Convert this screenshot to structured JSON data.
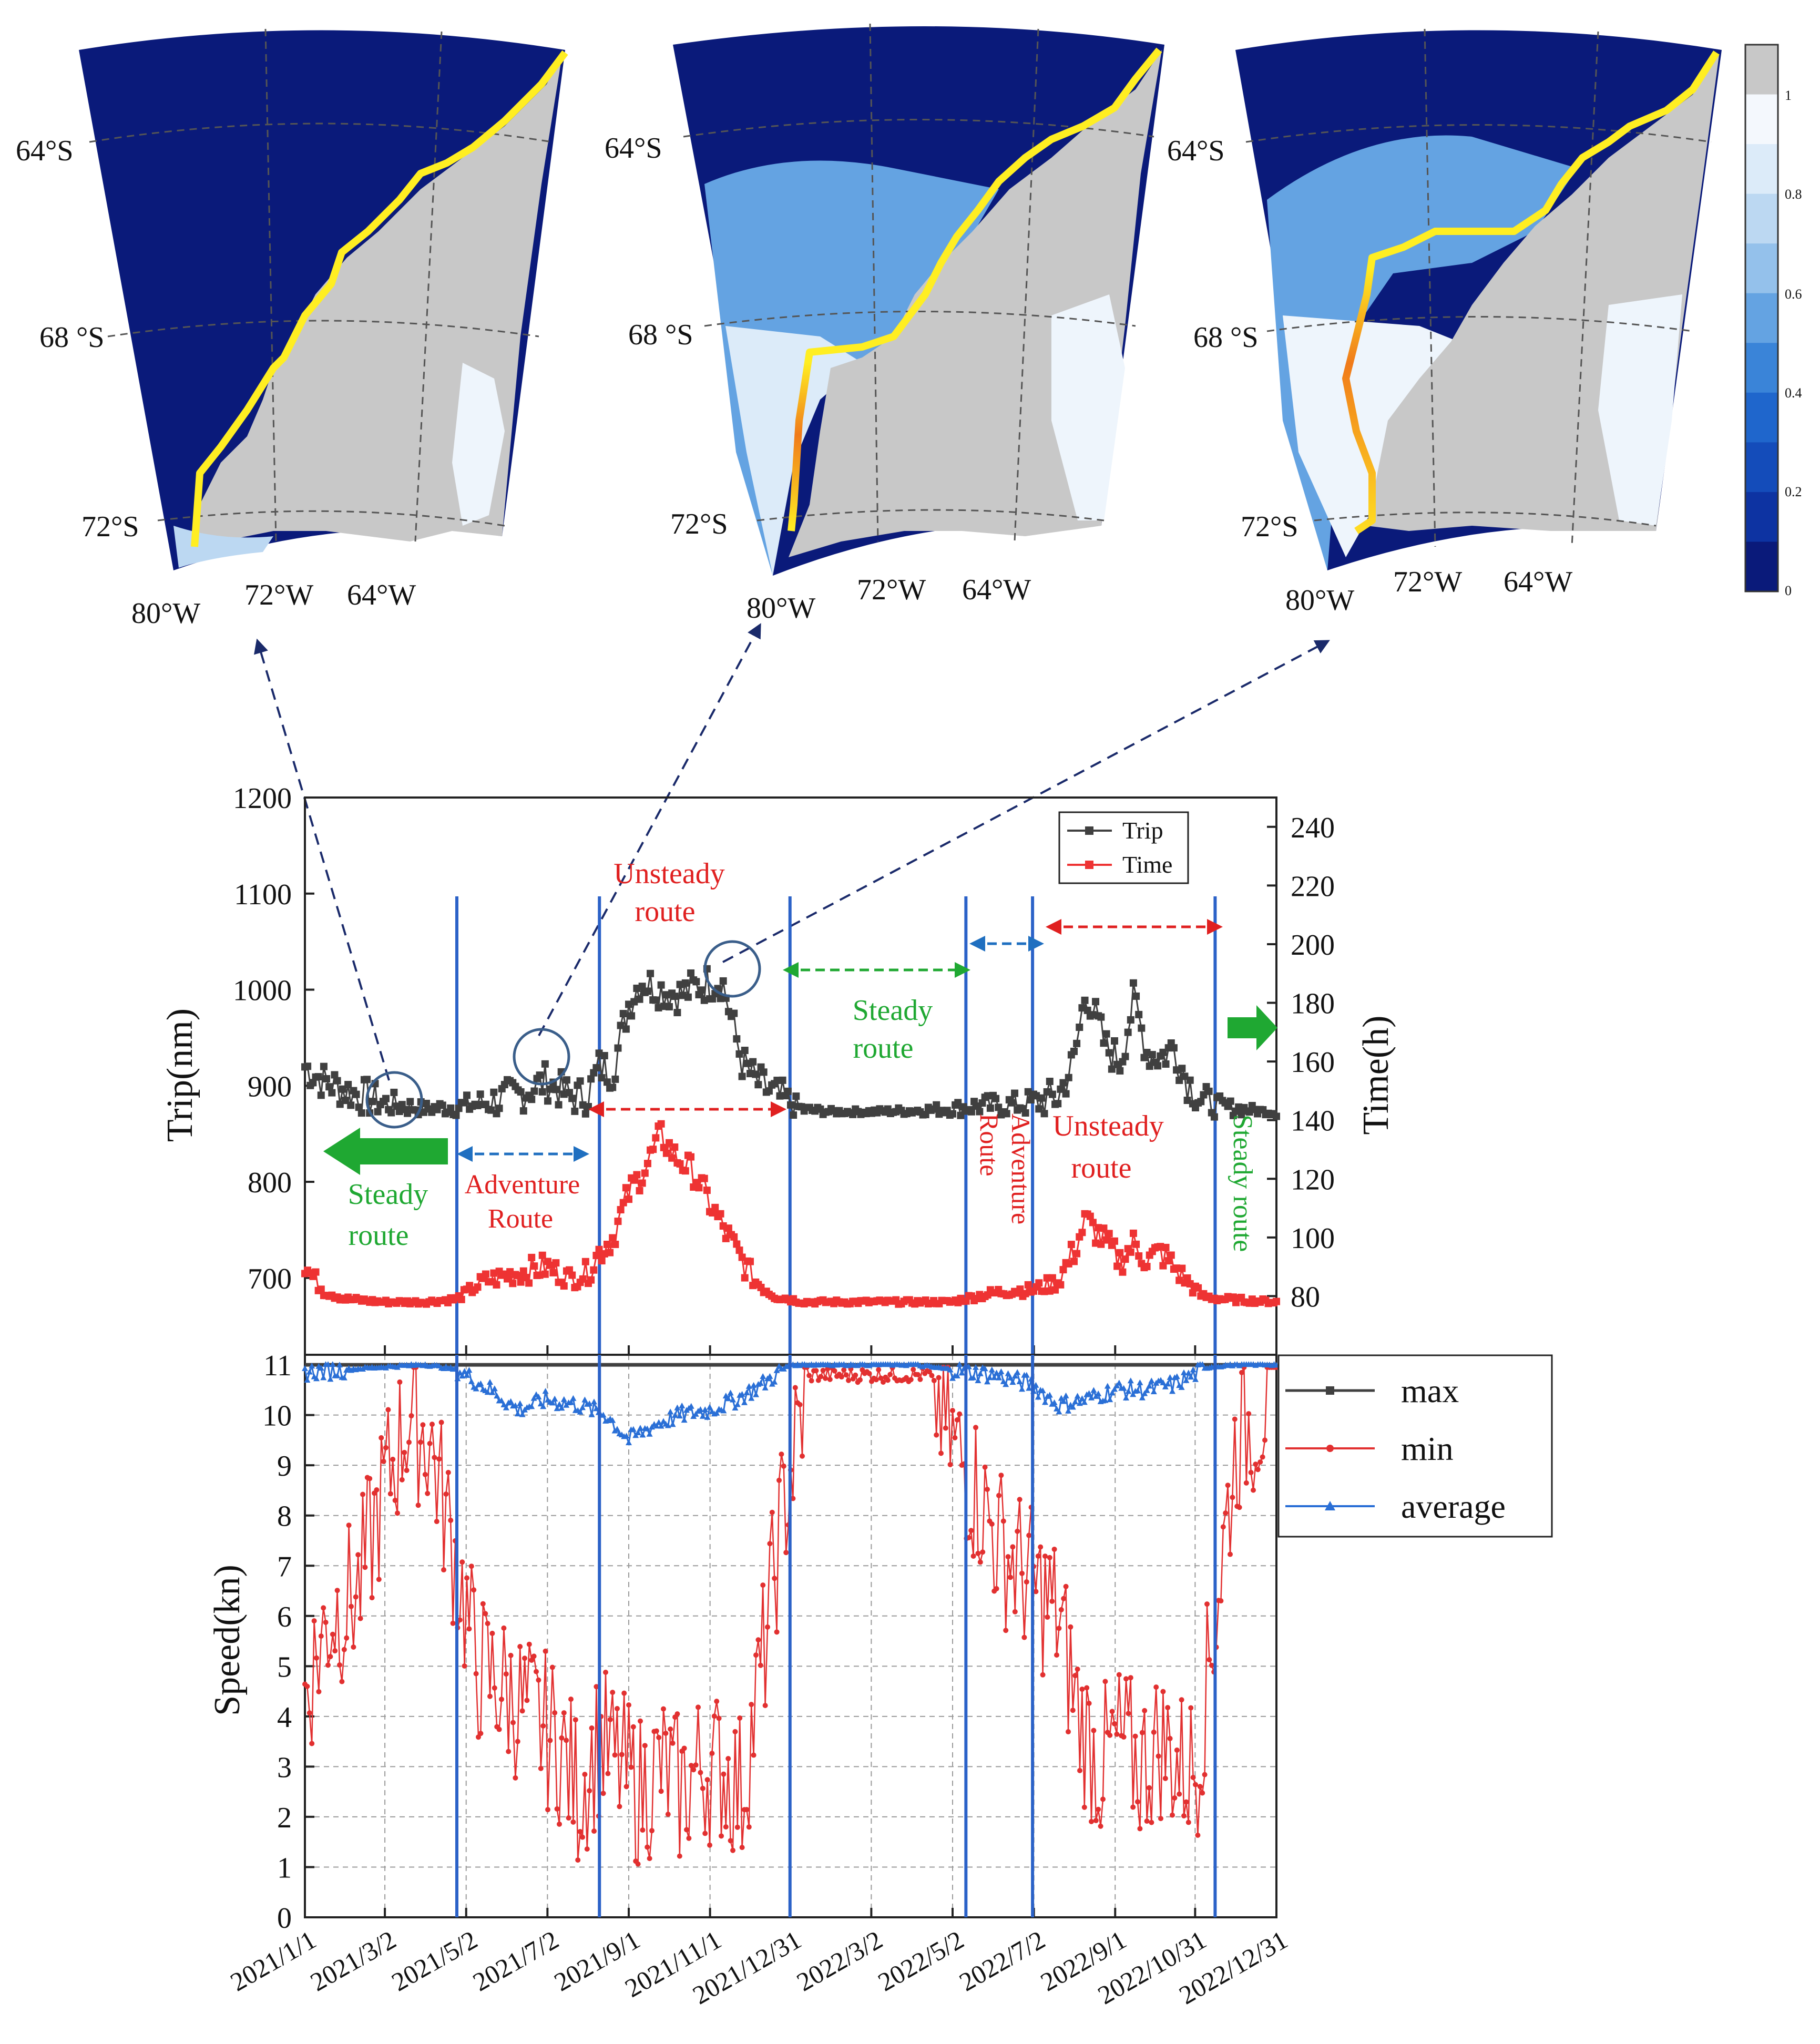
{
  "colors": {
    "ocean_dark": "#0a1a7a",
    "land": "#c8c8c8",
    "route_yellow": "#ffee22",
    "route_orange": "#f07a1a",
    "trip_series": "#404040",
    "time_series": "#ee3333",
    "max_series": "#404040",
    "min_series": "#e23030",
    "average_series": "#2a6fd6",
    "steady_label": "#1fa832",
    "unsteady_label": "#e02020",
    "adventure_label": "#e02020",
    "period_line": "#2b62c8",
    "adventure_arrow": "#1f6fc0",
    "steady_arrow": "#1fa832",
    "unsteady_arrow": "#e02020",
    "connector": "#1a2a6a"
  },
  "maps": [
    {
      "lat_labels": [
        "64°S",
        "68 °S",
        "72°S"
      ],
      "lon_labels": [
        "80°W",
        "72°W",
        "64°W"
      ],
      "route_color": "yellow"
    },
    {
      "lat_labels": [
        "64°S",
        "68 °S",
        "72°S"
      ],
      "lon_labels": [
        "80°W",
        "72°W",
        "64°W"
      ],
      "route_color": "yellow-orange"
    },
    {
      "lat_labels": [
        "64°S",
        "68 °S",
        "72°S"
      ],
      "lon_labels": [
        "80°W",
        "72°W",
        "64°W"
      ],
      "route_color": "yellow-orange"
    }
  ],
  "colorbar": {
    "ticks": [
      "1",
      "0.8",
      "0.6",
      "0.4",
      "0.2",
      "0"
    ],
    "colors": [
      "#c8c8c8",
      "#f4f8fd",
      "#dcebf9",
      "#bcd8f2",
      "#94c1eb",
      "#64a3e2",
      "#3a84d8",
      "#1f66cc",
      "#144cba",
      "#0d33a2",
      "#0a1a7a"
    ]
  },
  "annotations": {
    "unsteady_1": [
      "Unsteady",
      "route"
    ],
    "steady_1": [
      "Steady",
      "route"
    ],
    "steady_2": [
      "Steady",
      "route"
    ],
    "adventure_1": [
      "Adventure",
      "Route"
    ],
    "adventure_2": [
      "Adventure",
      "Route"
    ],
    "unsteady_2": [
      "Unsteady",
      "route"
    ],
    "steady_3": "Steady route"
  },
  "chart_data": [
    {
      "type": "line",
      "ylabel": "Trip(nm)",
      "y2label": "Time(h)",
      "ylim": [
        620,
        1200
      ],
      "yticks": [
        700,
        800,
        900,
        1000,
        1100,
        1200
      ],
      "y2lim": [
        60,
        250
      ],
      "y2ticks": [
        80,
        100,
        120,
        140,
        160,
        180,
        200,
        220,
        240
      ],
      "xlim": [
        "2021-01-01",
        "2022-12-31"
      ],
      "legend_position": "top-right",
      "series": [
        {
          "name": "Trip",
          "axis": "left",
          "x": [
            "2021-01-01",
            "2021-01-15",
            "2021-02-01",
            "2021-03-01",
            "2021-04-01",
            "2021-04-25",
            "2021-05-15",
            "2021-06-10",
            "2021-07-01",
            "2021-07-20",
            "2021-08-01",
            "2021-08-10",
            "2021-08-20",
            "2021-09-01",
            "2021-09-10",
            "2021-09-25",
            "2021-10-10",
            "2021-10-25",
            "2021-11-10",
            "2021-11-25",
            "2021-12-05",
            "2021-12-20",
            "2022-01-10",
            "2022-02-01",
            "2022-03-01",
            "2022-04-01",
            "2022-05-01",
            "2022-05-20",
            "2022-06-15",
            "2022-07-01",
            "2022-07-20",
            "2022-08-01",
            "2022-08-10",
            "2022-08-25",
            "2022-09-05",
            "2022-09-15",
            "2022-09-25",
            "2022-10-05",
            "2022-10-15",
            "2022-10-25",
            "2022-11-05",
            "2022-11-20",
            "2022-12-31"
          ],
          "values": [
            920,
            905,
            895,
            882,
            876,
            878,
            882,
            890,
            905,
            888,
            890,
            920,
            915,
            985,
            1010,
            1000,
            995,
            1005,
            1010,
            925,
            905,
            890,
            875,
            873,
            873,
            874,
            876,
            879,
            880,
            882,
            888,
            925,
            1000,
            940,
            925,
            990,
            935,
            930,
            940,
            905,
            885,
            878,
            872
          ]
        },
        {
          "name": "Time",
          "axis": "right",
          "x": [
            "2021-01-01",
            "2021-01-15",
            "2021-02-01",
            "2021-03-01",
            "2021-04-01",
            "2021-04-25",
            "2021-05-15",
            "2021-06-10",
            "2021-07-01",
            "2021-07-20",
            "2021-08-01",
            "2021-08-10",
            "2021-08-20",
            "2021-09-01",
            "2021-09-15",
            "2021-09-25",
            "2021-10-05",
            "2021-10-20",
            "2021-11-05",
            "2021-11-20",
            "2021-12-05",
            "2021-12-20",
            "2022-01-10",
            "2022-02-01",
            "2022-03-01",
            "2022-04-01",
            "2022-05-01",
            "2022-05-20",
            "2022-06-15",
            "2022-07-01",
            "2022-07-20",
            "2022-08-01",
            "2022-08-10",
            "2022-08-25",
            "2022-09-05",
            "2022-09-15",
            "2022-09-25",
            "2022-10-05",
            "2022-10-15",
            "2022-10-25",
            "2022-11-05",
            "2022-11-20",
            "2022-12-31"
          ],
          "values": [
            90,
            82,
            79,
            78,
            78,
            79,
            85,
            88,
            90,
            86,
            88,
            95,
            100,
            115,
            125,
            135,
            128,
            122,
            108,
            96,
            85,
            80,
            78,
            78,
            78,
            78,
            78,
            80,
            82,
            82,
            85,
            95,
            106,
            98,
            92,
            98,
            92,
            95,
            90,
            85,
            80,
            79,
            78
          ]
        }
      ]
    },
    {
      "type": "line",
      "ylabel": "Speed(kn)",
      "ylim": [
        0,
        11.2
      ],
      "yticks": [
        0,
        1,
        2,
        3,
        4,
        5,
        6,
        7,
        8,
        9,
        10,
        11
      ],
      "xlim": [
        "2021-01-01",
        "2022-12-31"
      ],
      "xticks": [
        "2021/1/1",
        "2021/3/2",
        "2021/5/2",
        "2021/7/2",
        "2021/9/1",
        "2021/11/1",
        "2021/12/31",
        "2022/3/2",
        "2022/5/2",
        "2022/7/2",
        "2022/9/1",
        "2022/10/31",
        "2022/12/31"
      ],
      "grid": true,
      "legend_position": "right",
      "period_boundaries": [
        "2021-04-25",
        "2021-08-10",
        "2021-12-31",
        "2022-05-12",
        "2022-07-01",
        "2022-11-15"
      ],
      "series": [
        {
          "name": "max",
          "x": [
            "2021-01-01",
            "2022-12-31"
          ],
          "values": [
            11,
            11
          ]
        },
        {
          "name": "min",
          "x": [
            "2021-01-01",
            "2021-01-20",
            "2021-02-10",
            "2021-03-01",
            "2021-03-20",
            "2021-04-05",
            "2021-04-25",
            "2021-05-10",
            "2021-06-01",
            "2021-06-20",
            "2021-07-10",
            "2021-07-25",
            "2021-08-10",
            "2021-08-25",
            "2021-09-10",
            "2021-09-25",
            "2021-10-10",
            "2021-10-25",
            "2021-11-10",
            "2021-11-25",
            "2021-12-10",
            "2021-12-25",
            "2022-01-15",
            "2022-02-15",
            "2022-03-15",
            "2022-04-15",
            "2022-05-01",
            "2022-05-20",
            "2022-06-05",
            "2022-06-20",
            "2022-07-05",
            "2022-07-20",
            "2022-08-05",
            "2022-08-20",
            "2022-09-05",
            "2022-09-20",
            "2022-10-05",
            "2022-10-20",
            "2022-11-01",
            "2022-11-15",
            "2022-12-01",
            "2022-12-31"
          ],
          "values": [
            4.5,
            6.0,
            6.5,
            8.5,
            10.0,
            9.5,
            7.0,
            5.0,
            4.5,
            4.0,
            3.5,
            2.5,
            3.5,
            3.0,
            2.5,
            3.0,
            2.5,
            3.0,
            3.0,
            2.5,
            5.0,
            8.0,
            10.8,
            10.8,
            10.8,
            10.8,
            9.5,
            8.5,
            7.5,
            7.0,
            6.5,
            6.0,
            4.0,
            3.0,
            3.5,
            3.0,
            3.5,
            3.0,
            3.0,
            6.0,
            9.5,
            10.5
          ]
        },
        {
          "name": "average",
          "x": [
            "2021-01-01",
            "2021-02-01",
            "2021-03-01",
            "2021-04-01",
            "2021-04-25",
            "2021-05-20",
            "2021-06-10",
            "2021-07-01",
            "2021-07-25",
            "2021-08-15",
            "2021-09-01",
            "2021-09-20",
            "2021-10-10",
            "2021-11-01",
            "2021-11-20",
            "2021-12-10",
            "2021-12-31",
            "2022-02-01",
            "2022-03-01",
            "2022-04-01",
            "2022-05-01",
            "2022-06-01",
            "2022-07-01",
            "2022-07-20",
            "2022-08-10",
            "2022-09-01",
            "2022-09-25",
            "2022-10-15",
            "2022-11-10",
            "2022-12-01",
            "2022-12-31"
          ],
          "values": [
            10.85,
            10.9,
            10.95,
            11.0,
            10.9,
            10.5,
            10.1,
            10.3,
            10.2,
            10.0,
            9.5,
            9.8,
            10.0,
            10.1,
            10.3,
            10.6,
            11.0,
            11.0,
            11.0,
            11.0,
            10.9,
            10.8,
            10.6,
            10.2,
            10.3,
            10.5,
            10.5,
            10.6,
            10.95,
            11.0,
            11.0
          ]
        }
      ]
    }
  ]
}
